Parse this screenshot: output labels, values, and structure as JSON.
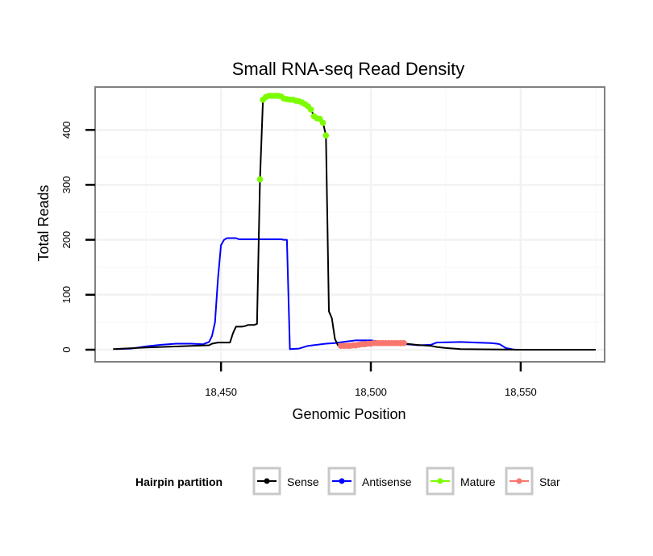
{
  "chart_data": {
    "type": "line",
    "title": "Small RNA-seq Read Density",
    "xlabel": "Genomic Position",
    "ylabel": "Total Reads",
    "xlim": [
      18408,
      18578
    ],
    "ylim": [
      -22,
      478
    ],
    "x_ticks": [
      18450,
      18500,
      18550
    ],
    "x_tick_labels": [
      "18,450",
      "18,500",
      "18,550"
    ],
    "y_ticks": [
      0,
      100,
      200,
      300,
      400
    ],
    "y_tick_labels": [
      "0",
      "100",
      "200",
      "300",
      "400"
    ],
    "grid": true,
    "legend": {
      "title": "Hairpin partition",
      "position": "bottom",
      "entries": [
        "Sense",
        "Antisense",
        "Mature",
        "Star"
      ]
    },
    "series": [
      {
        "name": "Sense",
        "color": "#000000",
        "style": "line",
        "points": [
          [
            18414,
            1
          ],
          [
            18425,
            4
          ],
          [
            18430,
            5
          ],
          [
            18440,
            7
          ],
          [
            18446,
            8
          ],
          [
            18447,
            11
          ],
          [
            18449,
            13
          ],
          [
            18451,
            13
          ],
          [
            18453,
            13
          ],
          [
            18454,
            30
          ],
          [
            18455,
            42
          ],
          [
            18457,
            42
          ],
          [
            18458,
            43
          ],
          [
            18459,
            45
          ],
          [
            18461,
            45
          ],
          [
            18462,
            47
          ],
          [
            18463,
            310
          ],
          [
            18464,
            455
          ],
          [
            18465,
            460
          ],
          [
            18468,
            462
          ],
          [
            18470,
            461
          ],
          [
            18472,
            457
          ],
          [
            18474,
            455
          ],
          [
            18476,
            452
          ],
          [
            18478,
            448
          ],
          [
            18480,
            438
          ],
          [
            18481,
            425
          ],
          [
            18483,
            420
          ],
          [
            18484,
            414
          ],
          [
            18485,
            390
          ],
          [
            18486,
            70
          ],
          [
            18487,
            57
          ],
          [
            18488,
            20
          ],
          [
            18489,
            8
          ],
          [
            18491,
            7
          ],
          [
            18495,
            9
          ],
          [
            18500,
            11
          ],
          [
            18505,
            12
          ],
          [
            18510,
            12
          ],
          [
            18515,
            9
          ],
          [
            18520,
            7
          ],
          [
            18522,
            5
          ],
          [
            18525,
            3
          ],
          [
            18530,
            1
          ],
          [
            18550,
            0
          ],
          [
            18575,
            0
          ]
        ]
      },
      {
        "name": "Antisense",
        "color": "#0000ff",
        "style": "line",
        "points": [
          [
            18415,
            1
          ],
          [
            18420,
            2
          ],
          [
            18425,
            6
          ],
          [
            18430,
            9
          ],
          [
            18435,
            11
          ],
          [
            18440,
            11
          ],
          [
            18444,
            10
          ],
          [
            18446,
            14
          ],
          [
            18447,
            25
          ],
          [
            18448,
            50
          ],
          [
            18449,
            130
          ],
          [
            18450,
            190
          ],
          [
            18451,
            200
          ],
          [
            18452,
            203
          ],
          [
            18455,
            203
          ],
          [
            18456,
            201
          ],
          [
            18460,
            201
          ],
          [
            18465,
            201
          ],
          [
            18469,
            201
          ],
          [
            18470,
            201
          ],
          [
            18471,
            200
          ],
          [
            18472,
            200
          ],
          [
            18473,
            1
          ],
          [
            18476,
            2
          ],
          [
            18479,
            7
          ],
          [
            18485,
            11
          ],
          [
            18488,
            12
          ],
          [
            18492,
            15
          ],
          [
            18495,
            17
          ],
          [
            18500,
            17
          ],
          [
            18503,
            15
          ],
          [
            18508,
            13
          ],
          [
            18512,
            10
          ],
          [
            18516,
            8
          ],
          [
            18520,
            9
          ],
          [
            18522,
            13
          ],
          [
            18530,
            14
          ],
          [
            18535,
            13
          ],
          [
            18540,
            12
          ],
          [
            18542,
            11
          ],
          [
            18543,
            10
          ],
          [
            18545,
            3
          ],
          [
            18548,
            0
          ],
          [
            18575,
            0
          ]
        ]
      },
      {
        "name": "Mature",
        "color": "#7cfc00",
        "style": "points",
        "points": [
          [
            18463,
            310
          ],
          [
            18464,
            455
          ],
          [
            18465,
            460
          ],
          [
            18466,
            462
          ],
          [
            18467,
            462
          ],
          [
            18468,
            462
          ],
          [
            18469,
            462
          ],
          [
            18470,
            461
          ],
          [
            18471,
            457
          ],
          [
            18472,
            456
          ],
          [
            18473,
            455
          ],
          [
            18474,
            455
          ],
          [
            18475,
            453
          ],
          [
            18476,
            452
          ],
          [
            18477,
            450
          ],
          [
            18478,
            447
          ],
          [
            18479,
            443
          ],
          [
            18480,
            437
          ],
          [
            18481,
            425
          ],
          [
            18482,
            421
          ],
          [
            18483,
            420
          ],
          [
            18484,
            413
          ],
          [
            18485,
            390
          ]
        ]
      },
      {
        "name": "Star",
        "color": "#f8766d",
        "style": "points",
        "points": [
          [
            18490,
            7
          ],
          [
            18491,
            7
          ],
          [
            18492,
            7
          ],
          [
            18493,
            7
          ],
          [
            18494,
            8
          ],
          [
            18495,
            8
          ],
          [
            18496,
            9
          ],
          [
            18497,
            10
          ],
          [
            18498,
            10
          ],
          [
            18499,
            11
          ],
          [
            18500,
            11
          ],
          [
            18501,
            12
          ],
          [
            18502,
            12
          ],
          [
            18503,
            12
          ],
          [
            18504,
            12
          ],
          [
            18505,
            12
          ],
          [
            18506,
            12
          ],
          [
            18507,
            12
          ],
          [
            18508,
            12
          ],
          [
            18509,
            12
          ],
          [
            18510,
            12
          ],
          [
            18511,
            12
          ]
        ]
      }
    ]
  }
}
